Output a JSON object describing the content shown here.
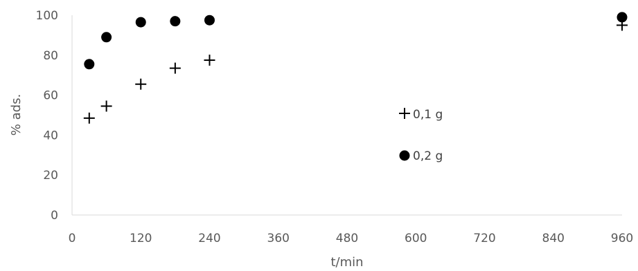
{
  "chart_data": {
    "type": "scatter",
    "title": "",
    "xlabel": "t/min",
    "ylabel": "% ads.",
    "xlim": [
      0,
      960
    ],
    "ylim": [
      0,
      100
    ],
    "xticks": [
      0,
      120,
      240,
      360,
      480,
      600,
      720,
      840,
      960
    ],
    "yticks": [
      0,
      20,
      40,
      60,
      80,
      100
    ],
    "grid": false,
    "legend_position": "right",
    "series": [
      {
        "name": "0,1 g",
        "marker": "plus",
        "color": "#000000",
        "points": [
          {
            "x": 30,
            "y": 48.5
          },
          {
            "x": 60,
            "y": 54.5
          },
          {
            "x": 120,
            "y": 65.5
          },
          {
            "x": 180,
            "y": 73.5
          },
          {
            "x": 240,
            "y": 77.5
          },
          {
            "x": 960,
            "y": 95
          }
        ]
      },
      {
        "name": "0,2 g",
        "marker": "circle",
        "color": "#000000",
        "points": [
          {
            "x": 30,
            "y": 75.5
          },
          {
            "x": 60,
            "y": 89
          },
          {
            "x": 120,
            "y": 96.5
          },
          {
            "x": 180,
            "y": 97
          },
          {
            "x": 240,
            "y": 97.5
          },
          {
            "x": 960,
            "y": 99
          }
        ]
      }
    ]
  }
}
